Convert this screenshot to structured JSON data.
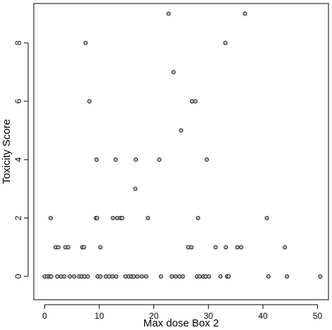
{
  "chart_data": {
    "type": "scatter",
    "title": "",
    "xlabel": "Max dose Box 2",
    "ylabel": "Toxicity Score",
    "xlim": [
      -2,
      52
    ],
    "ylim": [
      -0.8,
      9.35
    ],
    "x_ticks": [
      0,
      10,
      20,
      30,
      40,
      50
    ],
    "y_ticks": [
      0,
      2,
      4,
      6,
      8
    ],
    "grid": false,
    "legend": "none",
    "point_fill": "#b8b8b8",
    "point_stroke": "#000000",
    "points": [
      {
        "x": 0.0,
        "y": 0
      },
      {
        "x": 0.5,
        "y": 0
      },
      {
        "x": 0.9,
        "y": 0
      },
      {
        "x": 1.2,
        "y": 0
      },
      {
        "x": 2.3,
        "y": 0
      },
      {
        "x": 3.0,
        "y": 0
      },
      {
        "x": 3.6,
        "y": 0
      },
      {
        "x": 4.6,
        "y": 0
      },
      {
        "x": 5.4,
        "y": 0
      },
      {
        "x": 6.3,
        "y": 0
      },
      {
        "x": 6.8,
        "y": 0
      },
      {
        "x": 7.3,
        "y": 0
      },
      {
        "x": 7.9,
        "y": 0
      },
      {
        "x": 9.7,
        "y": 0
      },
      {
        "x": 10.2,
        "y": 0
      },
      {
        "x": 11.2,
        "y": 0
      },
      {
        "x": 11.8,
        "y": 0
      },
      {
        "x": 12.4,
        "y": 0
      },
      {
        "x": 13.1,
        "y": 0
      },
      {
        "x": 14.8,
        "y": 0
      },
      {
        "x": 15.4,
        "y": 0
      },
      {
        "x": 15.9,
        "y": 0
      },
      {
        "x": 16.3,
        "y": 0
      },
      {
        "x": 17.0,
        "y": 0
      },
      {
        "x": 17.8,
        "y": 0
      },
      {
        "x": 18.6,
        "y": 0
      },
      {
        "x": 21.3,
        "y": 0
      },
      {
        "x": 23.3,
        "y": 0
      },
      {
        "x": 24.0,
        "y": 0
      },
      {
        "x": 24.7,
        "y": 0
      },
      {
        "x": 25.3,
        "y": 0
      },
      {
        "x": 27.9,
        "y": 0
      },
      {
        "x": 28.4,
        "y": 0
      },
      {
        "x": 29.1,
        "y": 0
      },
      {
        "x": 29.5,
        "y": 0
      },
      {
        "x": 30.1,
        "y": 0
      },
      {
        "x": 32.2,
        "y": 0
      },
      {
        "x": 33.4,
        "y": 0
      },
      {
        "x": 33.7,
        "y": 0
      },
      {
        "x": 41.0,
        "y": 0
      },
      {
        "x": 44.4,
        "y": 0
      },
      {
        "x": 50.5,
        "y": 0
      },
      {
        "x": 2.0,
        "y": 1
      },
      {
        "x": 2.5,
        "y": 1
      },
      {
        "x": 3.8,
        "y": 1
      },
      {
        "x": 4.3,
        "y": 1
      },
      {
        "x": 6.9,
        "y": 1
      },
      {
        "x": 7.2,
        "y": 1
      },
      {
        "x": 10.2,
        "y": 1
      },
      {
        "x": 26.3,
        "y": 1
      },
      {
        "x": 26.9,
        "y": 1
      },
      {
        "x": 31.3,
        "y": 1
      },
      {
        "x": 33.2,
        "y": 1
      },
      {
        "x": 35.3,
        "y": 1
      },
      {
        "x": 36.0,
        "y": 1
      },
      {
        "x": 44.0,
        "y": 1
      },
      {
        "x": 1.1,
        "y": 2
      },
      {
        "x": 9.4,
        "y": 2
      },
      {
        "x": 9.6,
        "y": 2
      },
      {
        "x": 12.5,
        "y": 2
      },
      {
        "x": 13.3,
        "y": 2
      },
      {
        "x": 13.9,
        "y": 2
      },
      {
        "x": 14.2,
        "y": 2
      },
      {
        "x": 18.9,
        "y": 2
      },
      {
        "x": 28.1,
        "y": 2
      },
      {
        "x": 40.7,
        "y": 2
      },
      {
        "x": 16.6,
        "y": 3
      },
      {
        "x": 9.5,
        "y": 4
      },
      {
        "x": 13.0,
        "y": 4
      },
      {
        "x": 16.7,
        "y": 4
      },
      {
        "x": 21.0,
        "y": 4
      },
      {
        "x": 29.7,
        "y": 4
      },
      {
        "x": 25.0,
        "y": 5
      },
      {
        "x": 8.2,
        "y": 6
      },
      {
        "x": 27.0,
        "y": 6
      },
      {
        "x": 27.6,
        "y": 6
      },
      {
        "x": 23.6,
        "y": 7
      },
      {
        "x": 7.5,
        "y": 8
      },
      {
        "x": 33.1,
        "y": 8
      },
      {
        "x": 22.7,
        "y": 9
      },
      {
        "x": 36.7,
        "y": 9
      }
    ]
  }
}
